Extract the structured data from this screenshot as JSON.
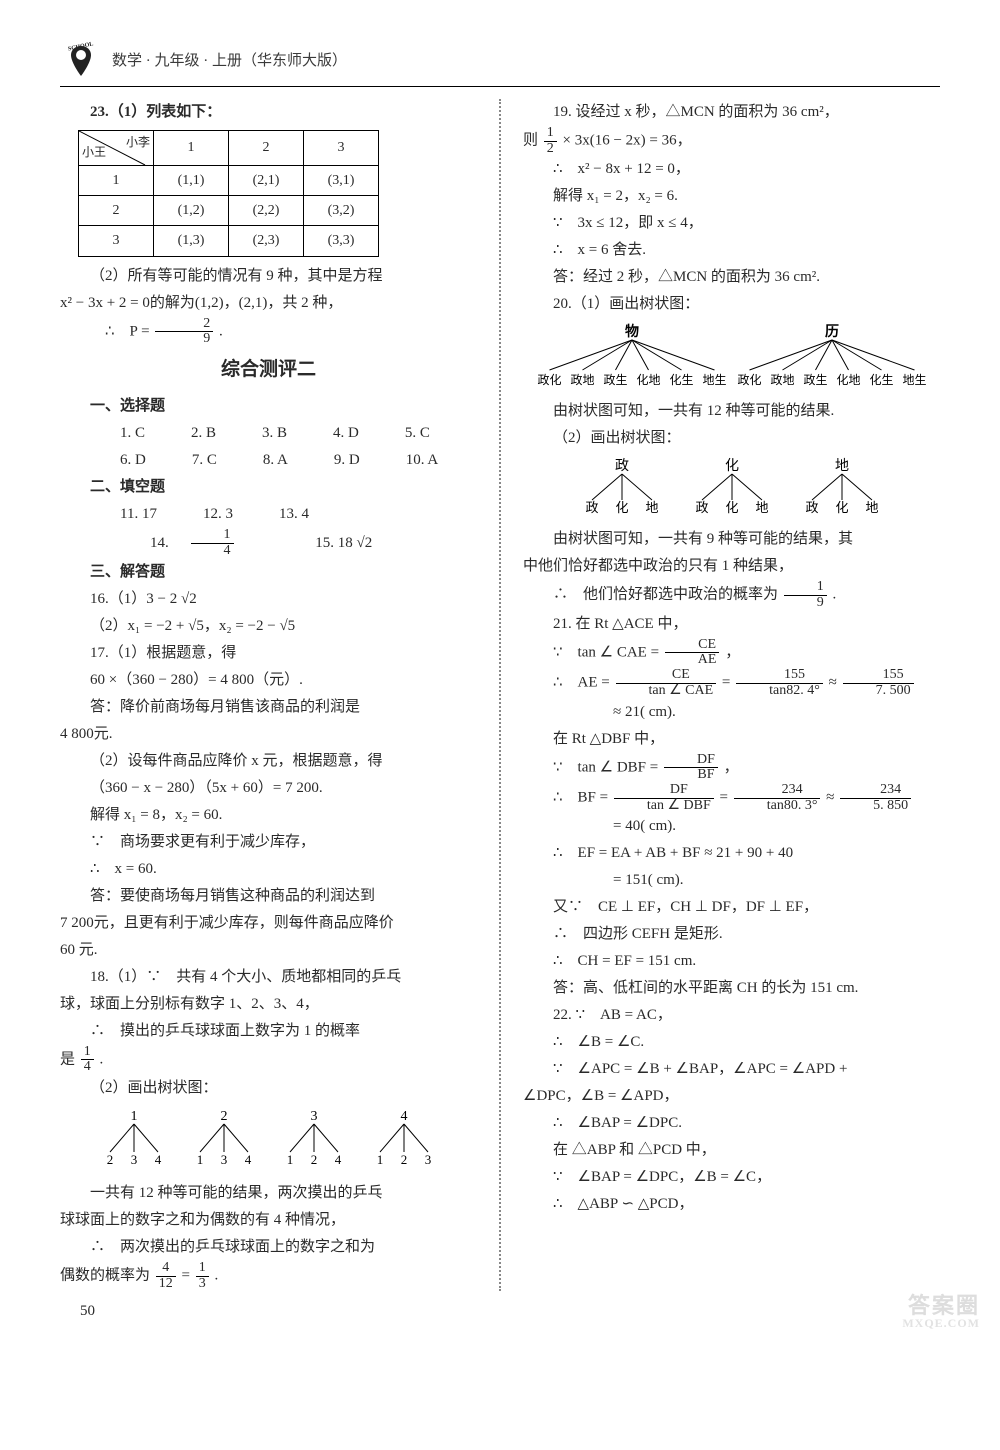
{
  "header": {
    "logo_text": "SCHOOL",
    "subject": "数学 · 九年级 · 上册（华东师大版）"
  },
  "left": {
    "q23_intro": "23.（1）列表如下：",
    "table": {
      "diag_top": "小李",
      "diag_bottom": "小王",
      "cols": [
        "1",
        "2",
        "3"
      ],
      "rows": [
        {
          "h": "1",
          "c": [
            "(1,1)",
            "(2,1)",
            "(3,1)"
          ]
        },
        {
          "h": "2",
          "c": [
            "(1,2)",
            "(2,2)",
            "(3,2)"
          ]
        },
        {
          "h": "3",
          "c": [
            "(1,3)",
            "(2,3)",
            "(3,3)"
          ]
        }
      ]
    },
    "q23_p2a": "（2）所有等可能的情况有 9 种，其中是方程",
    "q23_p2b": "x² − 3x + 2 = 0的解为(1,2)，(2,1)，共 2 种，",
    "q23_p2c_pre": "∴　P =",
    "q23_p2c_num": "2",
    "q23_p2c_den": "9",
    "q23_p2c_post": ".",
    "test_title": "综合测评二",
    "h1": "一、选择题",
    "mc": [
      "1. C",
      "2. B",
      "3. B",
      "4. D",
      "5. C",
      "6. D",
      "7. C",
      "8. A",
      "9. D",
      "10. A"
    ],
    "h2": "二、填空题",
    "fb_l1": [
      "11. 17",
      "12. 3",
      "13. 4"
    ],
    "fb_l2_a": "14.",
    "fb_l2_num": "1",
    "fb_l2_den": "4",
    "fb_l2_b": "15. 18 √2",
    "h3": "三、解答题",
    "q16a": "16.（1）3 − 2 √2",
    "q16b": "（2）x₁ = −2 + √5，x₂ = −2 − √5",
    "q17a": "17.（1）根据题意，得",
    "q17b": "60 ×（360 − 280）= 4 800（元）.",
    "q17c": "答：降价前商场每月销售该商品的利润是",
    "q17c2": "4 800元.",
    "q17d": "（2）设每件商品应降价 x 元，根据题意，得",
    "q17e": "（360 − x − 280）（5x + 60）= 7 200.",
    "q17f": "解得 x₁ = 8，x₂ = 60.",
    "q17g": "∵　商场要求更有利于减少库存，",
    "q17h": "∴　x = 60.",
    "q17i": "答：要使商场每月销售这种商品的利润达到",
    "q17i2": "7 200元，且更有利于减少库存，则每件商品应降价",
    "q17i3": "60 元.",
    "q18a": "18.（1）∵　共有 4 个大小、质地都相同的乒乓",
    "q18a2": "球，球面上分别标有数字 1、2、3、4，",
    "q18b": "∴　摸出的乒乓球球面上数字为 1 的概率",
    "q18b2_pre": "是",
    "q18b2_num": "1",
    "q18b2_den": "4",
    "q18b2_post": ".",
    "q18c": "（2）画出树状图：",
    "tree1": {
      "roots": [
        "1",
        "2",
        "3",
        "4"
      ],
      "leaves": [
        [
          "2",
          "3",
          "4"
        ],
        [
          "1",
          "3",
          "4"
        ],
        [
          "1",
          "2",
          "4"
        ],
        [
          "1",
          "2",
          "3"
        ]
      ]
    },
    "q18d": "一共有 12 种等可能的结果，两次摸出的乒乓",
    "q18d2": "球球面上的数字之和为偶数的有 4 种情况，",
    "q18e": "∴　两次摸出的乒乓球球面上的数字之和为",
    "q18e2_pre": "偶数的概率为",
    "q18e2_f1n": "4",
    "q18e2_f1d": "12",
    "q18e2_eq": " = ",
    "q18e2_f2n": "1",
    "q18e2_f2d": "3",
    "q18e2_post": "."
  },
  "right": {
    "q19a": "19. 设经过 x 秒，△MCN 的面积为 36 cm²，",
    "q19b_pre": "则",
    "q19b_n": "1",
    "q19b_d": "2",
    "q19b_post": " × 3x(16 − 2x) = 36，",
    "q19c": "∴　x² − 8x + 12 = 0，",
    "q19d": "解得 x₁ = 2，x₂ = 6.",
    "q19e": "∵　3x ≤ 12，即 x ≤ 4，",
    "q19f": "∴　x = 6 舍去.",
    "q19g": "答：经过 2 秒，△MCN 的面积为 36 cm².",
    "q20a": "20.（1）画出树状图：",
    "tree2": {
      "roots": [
        "物",
        "历"
      ],
      "leaves": [
        "政化",
        "政地",
        "政生",
        "化地",
        "化生",
        "地生",
        "政化",
        "政地",
        "政生",
        "化地",
        "化生",
        "地生"
      ]
    },
    "q20b": "由树状图可知，一共有 12 种等可能的结果.",
    "q20c": "（2）画出树状图：",
    "tree3": {
      "roots": [
        "政",
        "化",
        "地"
      ],
      "leaves": [
        [
          "政",
          "化",
          "地"
        ],
        [
          "政",
          "化",
          "地"
        ],
        [
          "政",
          "化",
          "地"
        ]
      ]
    },
    "q20d": "由树状图可知，一共有 9 种等可能的结果，其",
    "q20d2": "中他们恰好都选中政治的只有 1 种结果，",
    "q20e_pre": "∴　他们恰好都选中政治的概率为",
    "q20e_n": "1",
    "q20e_d": "9",
    "q20e_post": ".",
    "q21a": "21. 在 Rt △ACE 中，",
    "q21b_pre": "∵　tan ∠ CAE = ",
    "q21b_n": "CE",
    "q21b_d": "AE",
    "q21b_post": "，",
    "q21c_pre": "∴　AE  = ",
    "q21c_f1n": "CE",
    "q21c_f1d": "tan ∠ CAE",
    "q21c_eq1": " = ",
    "q21c_f2n": "155",
    "q21c_f2d": "tan82. 4°",
    "q21c_eq2": " ≈ ",
    "q21c_f3n": "155",
    "q21c_f3d": "7. 500",
    "q21c2": "≈ 21( cm).",
    "q21d": "在 Rt △DBF 中，",
    "q21e_pre": "∵　tan ∠ DBF = ",
    "q21e_n": "DF",
    "q21e_d": "BF",
    "q21e_post": "，",
    "q21f_pre": "∴　BF  = ",
    "q21f_f1n": "DF",
    "q21f_f1d": "tan ∠ DBF",
    "q21f_eq1": " = ",
    "q21f_f2n": "234",
    "q21f_f2d": "tan80. 3°",
    "q21f_eq2": " ≈ ",
    "q21f_f3n": "234",
    "q21f_f3d": "5. 850",
    "q21f2": "= 40( cm).",
    "q21g": "∴　EF  = EA + AB + BF ≈ 21 + 90 + 40",
    "q21g2": "= 151( cm).",
    "q21h": "又∵　CE ⊥ EF，CH ⊥ DF，DF ⊥ EF，",
    "q21i": "∴　四边形 CEFH 是矩形.",
    "q21j": "∴　CH = EF = 151  cm.",
    "q21k": "答：高、低杠间的水平距离 CH 的长为 151  cm.",
    "q22a": "22. ∵　AB = AC，",
    "q22b": "∴　∠B = ∠C.",
    "q22c": "∵　∠APC = ∠B + ∠BAP，∠APC = ∠APD +",
    "q22c2": "∠DPC，∠B = ∠APD，",
    "q22d": "∴　∠BAP = ∠DPC.",
    "q22e": "在 △ABP 和 △PCD 中，",
    "q22f": "∵　∠BAP = ∠DPC，∠B = ∠C，",
    "q22g": "∴　△ABP ∽ △PCD，"
  },
  "pagenum": "50",
  "watermark": {
    "line1": "答案圈",
    "line2": "MXQE.COM"
  }
}
